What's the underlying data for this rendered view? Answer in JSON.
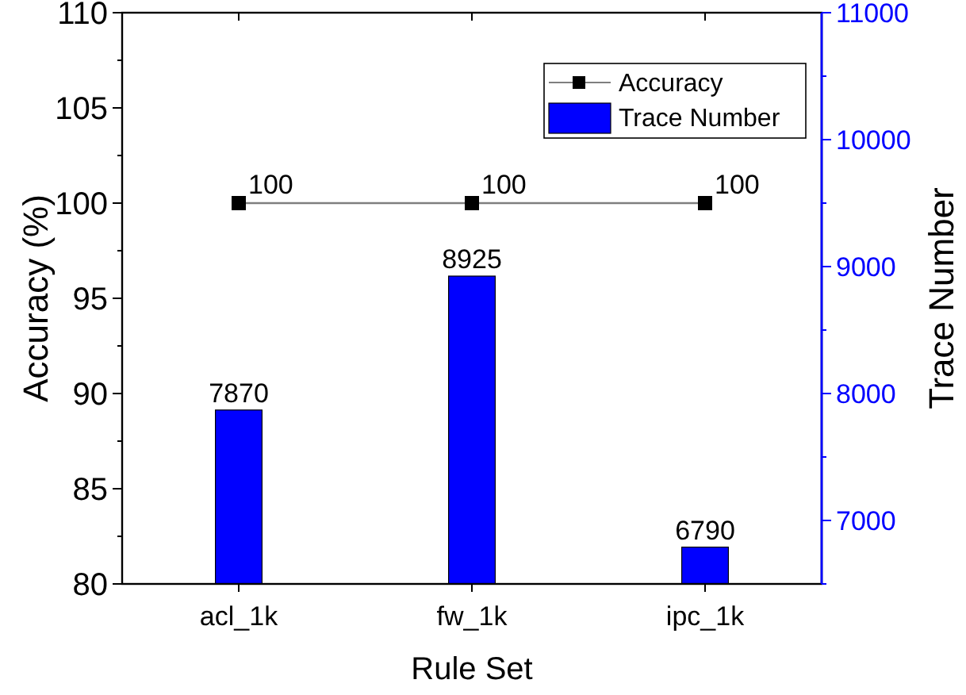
{
  "chart_data": {
    "type": "bar",
    "xlabel": "Rule Set",
    "ylabel": "Accuracy (%)",
    "y2label": "Trace Number",
    "categories": [
      "acl_1k",
      "fw_1k",
      "ipc_1k"
    ],
    "series": [
      {
        "name": "Accuracy",
        "type": "line",
        "color": "#000000",
        "values": [
          100,
          100,
          100
        ],
        "marker": "square"
      },
      {
        "name": "Trace Number",
        "axis": "y2",
        "color": "#0000ff",
        "values": [
          7870,
          8925,
          6790
        ]
      }
    ],
    "ylim": [
      80,
      110
    ],
    "yticks": [
      80,
      {
        "value": 82.5,
        "label": null
      },
      85,
      {
        "value": 87.5,
        "label": null
      },
      90,
      {
        "value": 92.5,
        "label": null
      },
      95,
      {
        "value": 97.5,
        "label": null
      },
      100,
      {
        "value": 102.5,
        "label": null
      },
      105,
      {
        "value": 107.5,
        "label": null
      },
      110
    ],
    "y2lim": [
      6500,
      11000
    ],
    "y2ticks": [
      {
        "value": 6500,
        "label": null
      },
      7000,
      {
        "value": 7500,
        "label": null
      },
      8000,
      {
        "value": 8500,
        "label": null
      },
      9000,
      {
        "value": 9500,
        "label": null
      },
      10000,
      {
        "value": 10500,
        "label": null
      },
      11000
    ],
    "data_labels": true,
    "legend": "top right",
    "grid": false
  }
}
